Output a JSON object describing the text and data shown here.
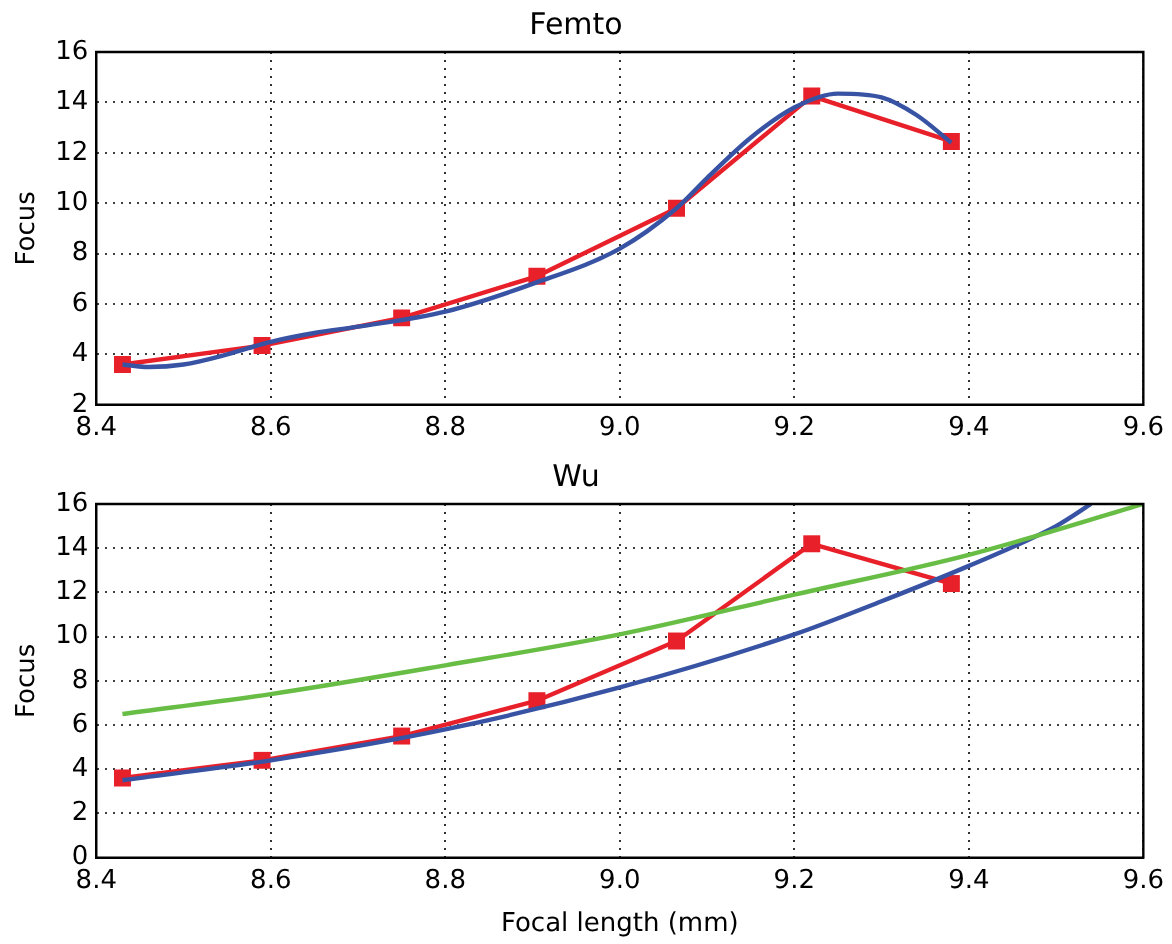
{
  "chart_data": [
    {
      "type": "line",
      "title": "Femto",
      "ylabel": "Focus",
      "xlim": [
        8.4,
        9.6
      ],
      "xticks": [
        8.4,
        8.6,
        8.8,
        {
          "value": 9,
          "label": "9.0"
        },
        9.2,
        9.4,
        9.6
      ],
      "ylim": [
        2,
        16
      ],
      "yticks": [
        2,
        4,
        6,
        8,
        10,
        12,
        14,
        16
      ],
      "grid": true,
      "legend": false,
      "series": [
        {
          "color": "#3853a4",
          "marker": "none",
          "x": [
            8.43,
            8.46,
            8.5,
            8.55,
            8.6,
            8.65,
            8.7,
            8.8,
            8.9,
            9.0,
            9.065,
            9.1,
            9.15,
            9.2,
            9.25,
            9.3,
            9.34,
            9.38
          ],
          "values": [
            3.6,
            3.5,
            3.6,
            4.0,
            4.5,
            4.85,
            5.1,
            5.7,
            6.8,
            8.2,
            9.8,
            11.0,
            12.6,
            13.8,
            14.35,
            14.2,
            13.5,
            12.4
          ]
        },
        {
          "color": "#e8202a",
          "marker": "square",
          "x": [
            8.43,
            8.59,
            8.75,
            8.905,
            9.065,
            9.22,
            9.38
          ],
          "values": [
            3.6,
            4.35,
            5.45,
            7.1,
            9.8,
            14.25,
            12.45
          ]
        }
      ]
    },
    {
      "type": "line",
      "title": "Wu",
      "xlabel": "Focal length (mm)",
      "ylabel": "Focus",
      "xlim": [
        8.4,
        9.6
      ],
      "xticks": [
        8.4,
        8.6,
        8.8,
        {
          "value": 9,
          "label": "9.0"
        },
        9.2,
        9.4,
        9.6
      ],
      "ylim": [
        0,
        16
      ],
      "yticks": [
        0,
        2,
        4,
        6,
        8,
        10,
        12,
        14,
        16
      ],
      "grid": true,
      "legend": false,
      "series": [
        {
          "color": "#68bd45",
          "marker": "none",
          "x": [
            8.43,
            8.6,
            8.8,
            9.0,
            9.2,
            9.4,
            9.6
          ],
          "values": [
            6.5,
            7.4,
            8.7,
            10.1,
            11.9,
            13.7,
            16
          ]
        },
        {
          "color": "#3853a4",
          "marker": "none",
          "x": [
            8.43,
            8.6,
            8.8,
            9.0,
            9.2,
            9.3,
            9.4,
            9.5,
            9.54
          ],
          "values": [
            3.5,
            4.4,
            5.8,
            7.7,
            10.1,
            11.6,
            13.2,
            15.0,
            16
          ]
        },
        {
          "color": "#e8202a",
          "marker": "square",
          "x": [
            8.43,
            8.59,
            8.75,
            8.905,
            9.065,
            9.22,
            9.38
          ],
          "values": [
            3.6,
            4.4,
            5.5,
            7.1,
            9.8,
            14.2,
            12.4
          ]
        }
      ]
    }
  ]
}
